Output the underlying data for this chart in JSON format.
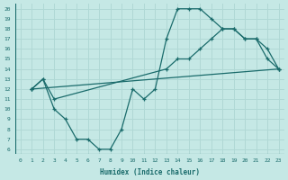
{
  "xlabel": "Humidex (Indice chaleur)",
  "xlim": [
    -0.5,
    23.5
  ],
  "ylim": [
    5.5,
    20.5
  ],
  "xticks": [
    0,
    1,
    2,
    3,
    4,
    5,
    6,
    7,
    8,
    9,
    10,
    11,
    12,
    13,
    14,
    15,
    16,
    17,
    18,
    19,
    20,
    21,
    22,
    23
  ],
  "yticks": [
    6,
    7,
    8,
    9,
    10,
    11,
    12,
    13,
    14,
    15,
    16,
    17,
    18,
    19,
    20
  ],
  "bg_color": "#c5e8e5",
  "line_color": "#1a6b6b",
  "grid_color": "#b0d8d5",
  "line1_x": [
    1,
    2,
    3,
    4,
    5,
    6,
    7,
    8,
    9,
    10,
    11,
    12,
    13,
    14,
    15,
    16,
    17,
    18,
    19,
    20,
    21,
    22,
    23
  ],
  "line1_y": [
    12,
    13,
    10,
    9,
    7,
    7,
    6,
    6,
    8,
    12,
    11,
    12,
    17,
    20,
    20,
    20,
    19,
    18,
    18,
    17,
    17,
    15,
    14
  ],
  "line2_x": [
    1,
    23
  ],
  "line2_y": [
    12,
    14
  ],
  "line3_x": [
    1,
    2,
    3,
    13,
    14,
    15,
    16,
    17,
    18,
    19,
    20,
    21,
    22,
    23
  ],
  "line3_y": [
    12,
    13,
    11,
    14,
    15,
    15,
    16,
    17,
    18,
    18,
    17,
    17,
    16,
    14
  ]
}
